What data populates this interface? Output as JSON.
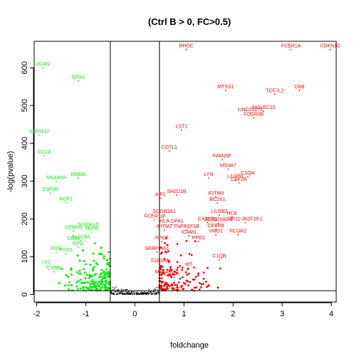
{
  "chart_data": {
    "type": "scatter",
    "title": "(Ctrl B > 0, FC>0.5)",
    "xlabel": "foldchange",
    "ylabel": "-log(pvalue)",
    "xlim": [
      -2.05,
      4.1
    ],
    "ylim": [
      -20,
      670
    ],
    "x_ticks": [
      -2,
      -1,
      0,
      1,
      2,
      3,
      4
    ],
    "y_ticks": [
      0,
      100,
      200,
      300,
      400,
      500,
      600
    ],
    "reference_lines": {
      "vertical": [
        -0.5,
        0.5
      ],
      "horizontal": [
        10
      ]
    },
    "colors": {
      "up": "#ff0000",
      "down": "#00ee00",
      "background": "#000000",
      "line": "#000000"
    },
    "labeled_points": {
      "up": [
        {
          "label": "RHOC",
          "x": 1.05,
          "y": 648
        },
        {
          "label": "FCER1A",
          "x": 3.18,
          "y": 648
        },
        {
          "label": "CDKN1C",
          "x": 3.98,
          "y": 648
        },
        {
          "label": "MTSS1",
          "x": 1.85,
          "y": 540
        },
        {
          "label": "TCF7L2",
          "x": 2.85,
          "y": 530
        },
        {
          "label": "CKB",
          "x": 3.35,
          "y": 540
        },
        {
          "label": "SIGLEC10",
          "x": 2.62,
          "y": 485
        },
        {
          "label": "LINC01272",
          "x": 2.35,
          "y": 480
        },
        {
          "label": "FCGR3B",
          "x": 2.42,
          "y": 467
        },
        {
          "label": "LST1",
          "x": 0.95,
          "y": 435
        },
        {
          "label": "COTL1",
          "x": 0.7,
          "y": 380
        },
        {
          "label": "FAM26F",
          "x": 1.78,
          "y": 357
        },
        {
          "label": "MS4A7",
          "x": 1.9,
          "y": 332
        },
        {
          "label": "C1QA",
          "x": 2.3,
          "y": 312
        },
        {
          "label": "LYN",
          "x": 1.5,
          "y": 308
        },
        {
          "label": "LILRB1",
          "x": 2.05,
          "y": 303
        },
        {
          "label": "CSF1R",
          "x": 2.12,
          "y": 295
        },
        {
          "label": "SH2D1B",
          "x": 0.85,
          "y": 263
        },
        {
          "label": "AIF1",
          "x": 0.52,
          "y": 255
        },
        {
          "label": "IFITM3",
          "x": 1.65,
          "y": 258
        },
        {
          "label": "BC2X1",
          "x": 1.68,
          "y": 242
        },
        {
          "label": "SCGB3A1",
          "x": 0.6,
          "y": 210
        },
        {
          "label": "FCER1G",
          "x": 0.4,
          "y": 198
        },
        {
          "label": "LILRB2",
          "x": 1.72,
          "y": 210
        },
        {
          "label": "HCK",
          "x": 1.98,
          "y": 205
        },
        {
          "label": "HLA-DPA1",
          "x": 0.75,
          "y": 185
        },
        {
          "label": "CX3CR1",
          "x": 1.48,
          "y": 190
        },
        {
          "label": "AC092580.4",
          "x": 1.7,
          "y": 188
        },
        {
          "label": "RP11-362F19.1",
          "x": 2.25,
          "y": 190
        },
        {
          "label": "IFITM2",
          "x": 0.6,
          "y": 170
        },
        {
          "label": "TNFRSF1B",
          "x": 1.05,
          "y": 170
        },
        {
          "label": "CEBPB",
          "x": 1.65,
          "y": 172
        },
        {
          "label": "VMO1",
          "x": 1.65,
          "y": 158
        },
        {
          "label": "FCGR2",
          "x": 2.1,
          "y": 158
        },
        {
          "label": "ICAM1",
          "x": 1.1,
          "y": 155
        },
        {
          "label": "NPC2",
          "x": 0.55,
          "y": 140
        },
        {
          "label": "PPD2",
          "x": 1.3,
          "y": 140
        },
        {
          "label": "SERPINA1",
          "x": 0.45,
          "y": 112
        },
        {
          "label": "C1QB",
          "x": 1.72,
          "y": 92
        },
        {
          "label": "S100A4",
          "x": 0.5,
          "y": 80
        },
        {
          "label": "MT",
          "x": 1.1,
          "y": 70
        },
        {
          "label": "MS4A",
          "x": 0.55,
          "y": 50
        },
        {
          "label": "TGA",
          "x": 0.8,
          "y": 45
        }
      ],
      "down": [
        {
          "label": "VCAN",
          "x": -1.88,
          "y": 600
        },
        {
          "label": "GPX1",
          "x": -1.15,
          "y": 565
        },
        {
          "label": "S100A12",
          "x": -1.95,
          "y": 422
        },
        {
          "label": "CD14",
          "x": -1.85,
          "y": 367
        },
        {
          "label": "MNDA",
          "x": -1.15,
          "y": 308
        },
        {
          "label": "MS4A6A",
          "x": -1.6,
          "y": 300
        },
        {
          "label": "CSF3R",
          "x": -1.72,
          "y": 268
        },
        {
          "label": "NCF1",
          "x": -1.4,
          "y": 243
        },
        {
          "label": "S100A10",
          "x": -0.95,
          "y": 175
        },
        {
          "label": "CEBPD",
          "x": -1.25,
          "y": 168
        },
        {
          "label": "TSPO",
          "x": -0.88,
          "y": 165
        },
        {
          "label": "SLC2A3",
          "x": -1.1,
          "y": 143
        },
        {
          "label": "CD36",
          "x": -1.25,
          "y": 138
        },
        {
          "label": "CFD",
          "x": -1.15,
          "y": 125
        },
        {
          "label": "FOS",
          "x": -1.6,
          "y": 112
        },
        {
          "label": "FCN1",
          "x": -1.4,
          "y": 108
        },
        {
          "label": "LYZ",
          "x": -1.8,
          "y": 75
        },
        {
          "label": "CYBB",
          "x": -1.65,
          "y": 60
        }
      ]
    },
    "point_counts": {
      "up_unlabeled": 150,
      "down_unlabeled": 170,
      "background": 250
    }
  }
}
